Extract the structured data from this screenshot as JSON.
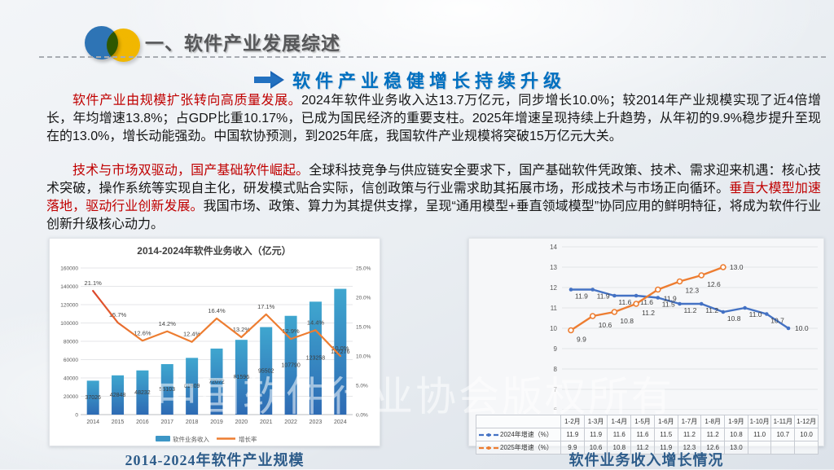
{
  "header": {
    "title": "一、软件产业发展综述"
  },
  "subtitle": {
    "text": "软件产业稳健增长持续升级"
  },
  "paragraphs": [
    {
      "segments": [
        {
          "text": "软件产业由规模扩张转向高质量发展。",
          "red": true
        },
        {
          "text": "2024年软件业务收入达13.7万亿元，同步增长10.0%；较2014年产业规模实现了近4倍增长，年均增速13.8%；占GDP比重10.17%，已成为国民经济的重要支柱。2025年增速呈现持续上升趋势，从年初的9.9%稳步提升至现在的13.0%，增长动能强劲。中国软协预测，到2025年底，我国软件产业规模将突破15万亿元大关。",
          "red": false
        }
      ]
    },
    {
      "segments": [
        {
          "text": "技术与市场双驱动，国产基础软件崛起。",
          "red": true
        },
        {
          "text": "全球科技竞争与供应链安全要求下，国产基础软件凭政策、技术、需求迎来机遇：核心技术突破，操作系统等实现自主化，研发模式贴合实际，信创政策与行业需求助其拓展市场，形成技术与市场正向循环。",
          "red": false
        },
        {
          "text": "垂直大模型加速落地，驱动行业创新发展。",
          "red": true
        },
        {
          "text": "我国市场、政策、算力为其提供支撑，呈现“通用模型+垂直领域模型”协同应用的鲜明特征，将成为软件行业创新升级核心动力。",
          "red": false
        }
      ]
    }
  ],
  "chart_data": [
    {
      "type": "bar",
      "title": "2014-2024年软件业务收入（亿元）",
      "categories": [
        "2014",
        "2015",
        "2016",
        "2017",
        "2018",
        "2019",
        "2020",
        "2021",
        "2022",
        "2023",
        "2024"
      ],
      "series": [
        {
          "name": "软件业务收入",
          "type": "bar",
          "values": [
            37026,
            42848,
            48232,
            55103,
            61909,
            72072,
            81596,
            95502,
            107790,
            123258,
            137276
          ]
        },
        {
          "name": "增长率",
          "type": "line",
          "values": [
            21.1,
            15.7,
            12.6,
            14.2,
            12.4,
            16.4,
            13.2,
            17.1,
            12.9,
            14.4,
            10.0
          ]
        }
      ],
      "y_left": {
        "min": 0,
        "max": 160000,
        "step": 20000
      },
      "y_right": {
        "min": 0,
        "max": 25,
        "step": 5,
        "suffix": "%"
      },
      "grid": true,
      "legend_position": "bottom"
    },
    {
      "type": "line",
      "title": "",
      "categories": [
        "1-2月",
        "1-3月",
        "1-4月",
        "1-5月",
        "1-6月",
        "1-7月",
        "1-8月",
        "1-9月",
        "1-10月",
        "1-11月",
        "1-12月"
      ],
      "series": [
        {
          "name": "2024年增速（%）",
          "color": "#4472C4",
          "values": [
            11.9,
            11.9,
            11.6,
            11.6,
            11.5,
            11.2,
            11.2,
            10.8,
            11.0,
            10.7,
            10.0
          ]
        },
        {
          "name": "2025年增速（%）",
          "color": "#ED7D31",
          "values": [
            9.9,
            10.6,
            10.8,
            11.2,
            11.9,
            12.3,
            12.6,
            13.0,
            null,
            null,
            null
          ]
        }
      ],
      "ylim": [
        6,
        14
      ],
      "ystep": 1,
      "grid": true,
      "legend_position": "table-left",
      "table": true
    }
  ],
  "captions": {
    "left": "2014-2024年软件产业规模",
    "right": "软件业务收入增长情况"
  },
  "watermark": "中国软件行业协会版权所有",
  "colors": {
    "accent_blue": "#0070C0",
    "red_text": "#C00000",
    "bar_top": "#3FA6CF",
    "bar_bottom": "#2E6BB4",
    "bar_legend": "#3D96C6",
    "line_orange": "#ED7D31",
    "line_red_start": "#D63429",
    "blue_series": "#4472C4",
    "grid": "#DCDEE1",
    "axis_text": "#595959",
    "caption": "#2D5C8A"
  }
}
